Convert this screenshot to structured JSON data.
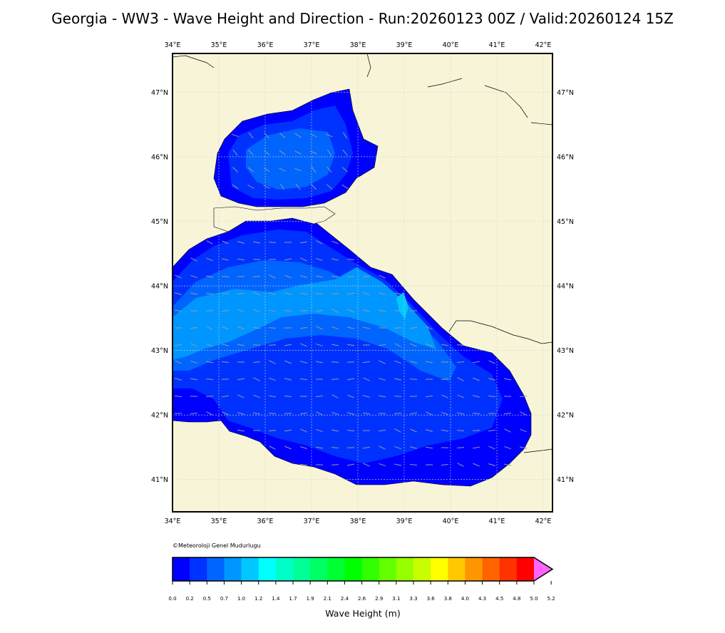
{
  "title": "Georgia - WW3 - Wave Height and Direction - Run:20260123 00Z / Valid:20260124 15Z",
  "credit": "©Meteoroloji Genel Mudurlugu",
  "colorbar": {
    "label": "Wave Height (m)",
    "ticks": [
      "0.0",
      "0.2",
      "0.5",
      "0.7",
      "1.0",
      "1.2",
      "1.4",
      "1.7",
      "1.9",
      "2.1",
      "2.4",
      "2.6",
      "2.9",
      "3.1",
      "3.3",
      "3.6",
      "3.8",
      "4.0",
      "4.3",
      "4.5",
      "4.8",
      "5.0",
      "5.2"
    ],
    "colors": [
      "#0000ff",
      "#0032ff",
      "#0064ff",
      "#0096ff",
      "#00c8ff",
      "#00ffff",
      "#00ffc8",
      "#00ff96",
      "#00ff64",
      "#00ff32",
      "#00ff00",
      "#32ff00",
      "#64ff00",
      "#96ff00",
      "#c8ff00",
      "#ffff00",
      "#ffc800",
      "#ff9600",
      "#ff6400",
      "#ff3200",
      "#ff0000",
      "#ff64ff"
    ]
  },
  "map": {
    "lon_labels": [
      "34°E",
      "35°E",
      "36°E",
      "37°E",
      "38°E",
      "39°E",
      "40°E",
      "41°E",
      "42°E"
    ],
    "lat_labels": [
      "47°N",
      "46°N",
      "45°N",
      "44°N",
      "43°N",
      "42°N",
      "41°N"
    ],
    "lon_range": [
      34.0,
      42.2
    ],
    "lat_range": [
      40.5,
      47.6
    ],
    "land_color": "#f7f4d8",
    "arrow_color": "#9a9a9a"
  }
}
